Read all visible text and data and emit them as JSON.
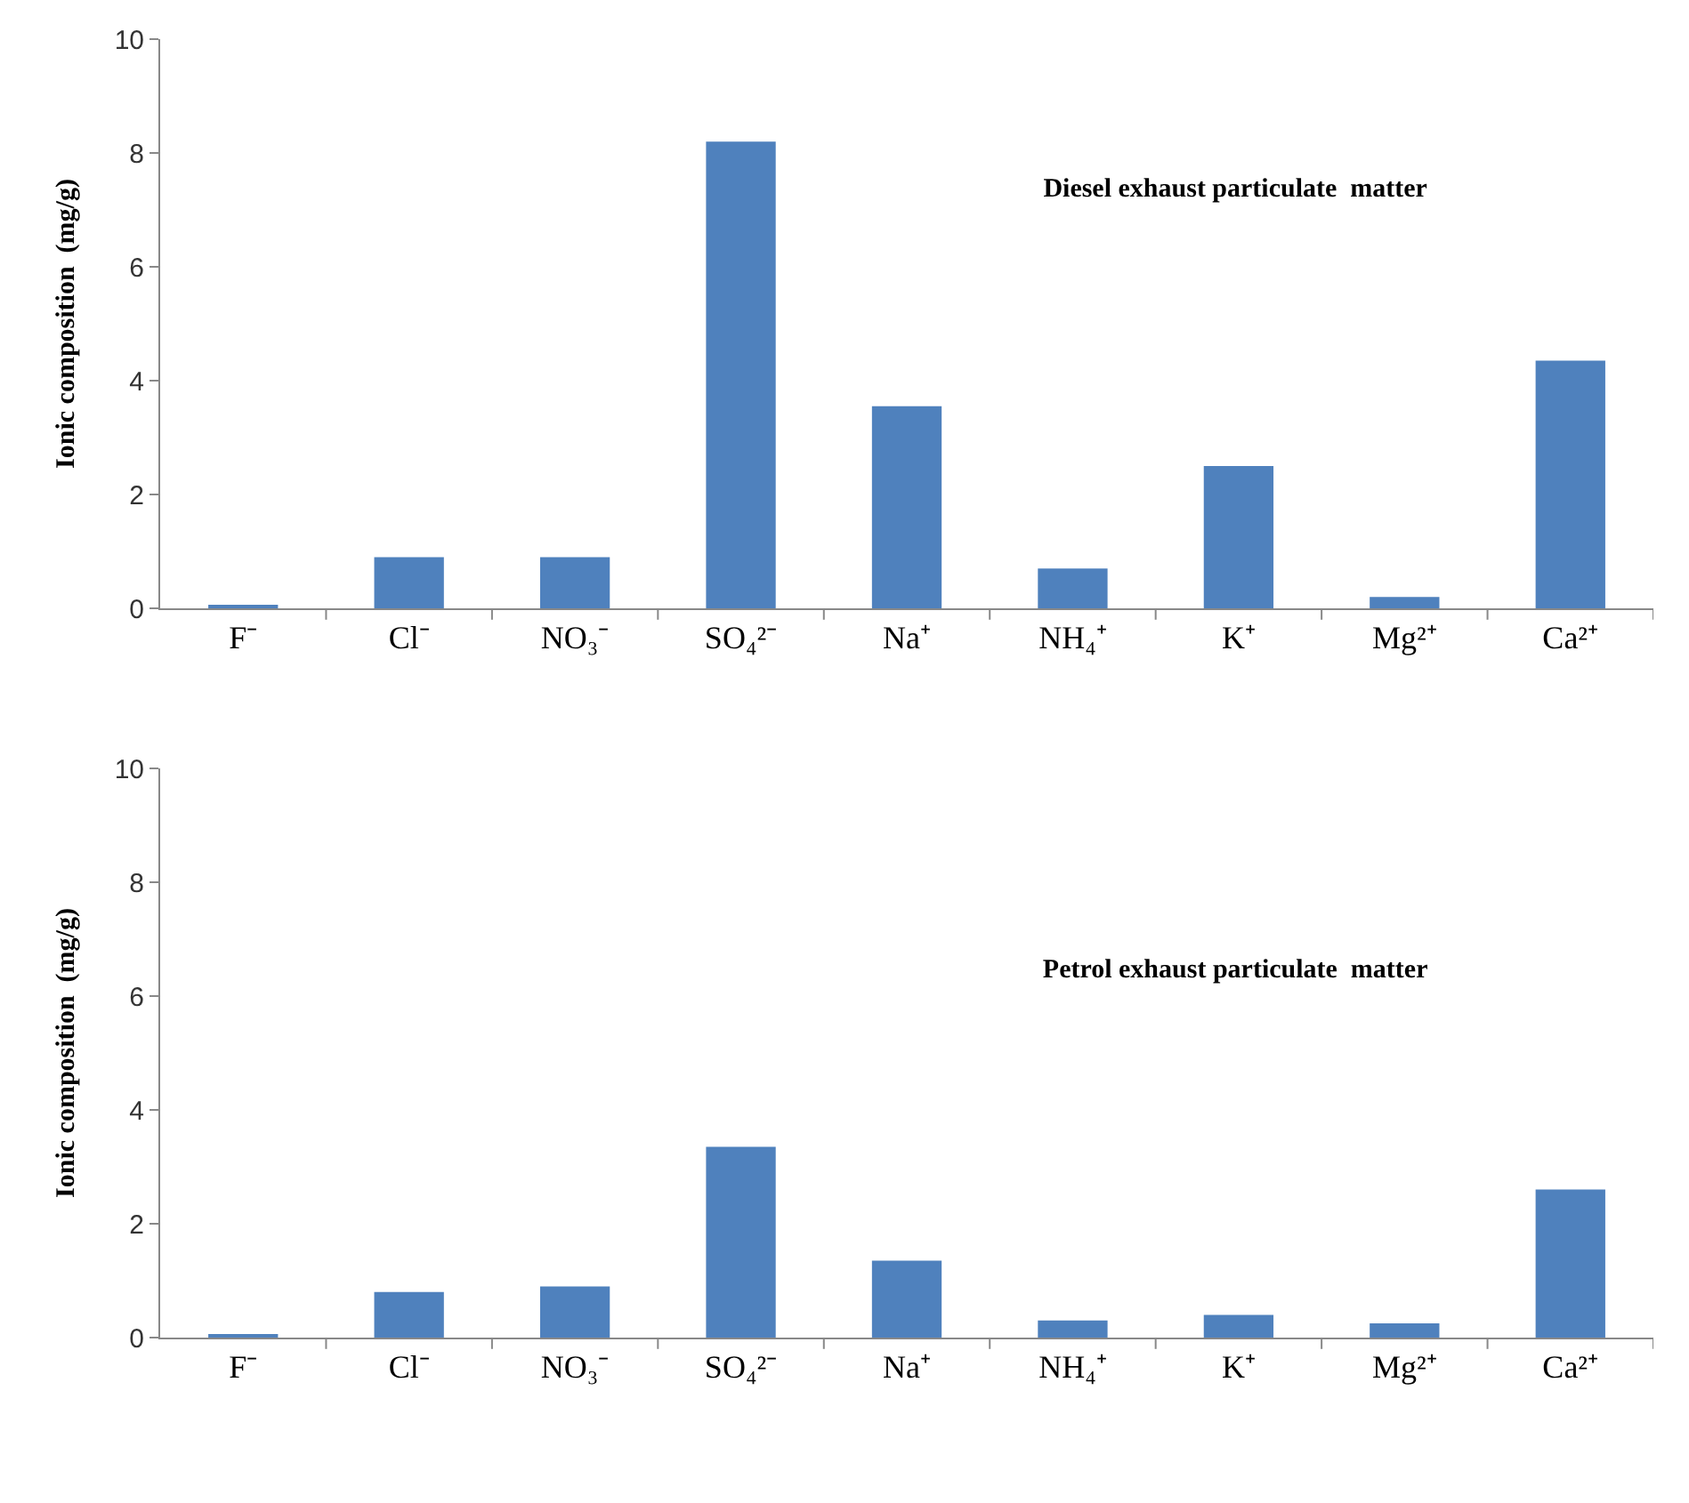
{
  "chart_data": [
    {
      "type": "bar",
      "title": "Diesel exhaust particulate  matter",
      "ylabel": "Ionic composition  (mg/g)",
      "categories": [
        "F⁻",
        "Cl⁻",
        "NO₃⁻",
        "SO₄²⁻",
        "Na⁺",
        "NH₄⁺",
        "K⁺",
        "Mg²⁺",
        "Ca²⁺"
      ],
      "values": [
        0.05,
        0.9,
        0.9,
        8.2,
        3.55,
        0.7,
        2.5,
        0.2,
        4.35
      ],
      "color": "#4f81bd",
      "ylim": [
        0,
        10
      ],
      "yticks": [
        0,
        2,
        4,
        6,
        8,
        10
      ]
    },
    {
      "type": "bar",
      "title": "Petrol exhaust particulate  matter",
      "ylabel": "Ionic composition  (mg/g)",
      "categories": [
        "F⁻",
        "Cl⁻",
        "NO₃⁻",
        "SO₄²⁻",
        "Na⁺",
        "NH₄⁺",
        "K⁺",
        "Mg²⁺",
        "Ca²⁺"
      ],
      "values": [
        0.05,
        0.8,
        0.9,
        3.35,
        1.35,
        0.3,
        0.4,
        0.25,
        2.6
      ],
      "color": "#4f81bd",
      "ylim": [
        0,
        10
      ],
      "yticks": [
        0,
        2,
        4,
        6,
        8,
        10
      ]
    }
  ]
}
